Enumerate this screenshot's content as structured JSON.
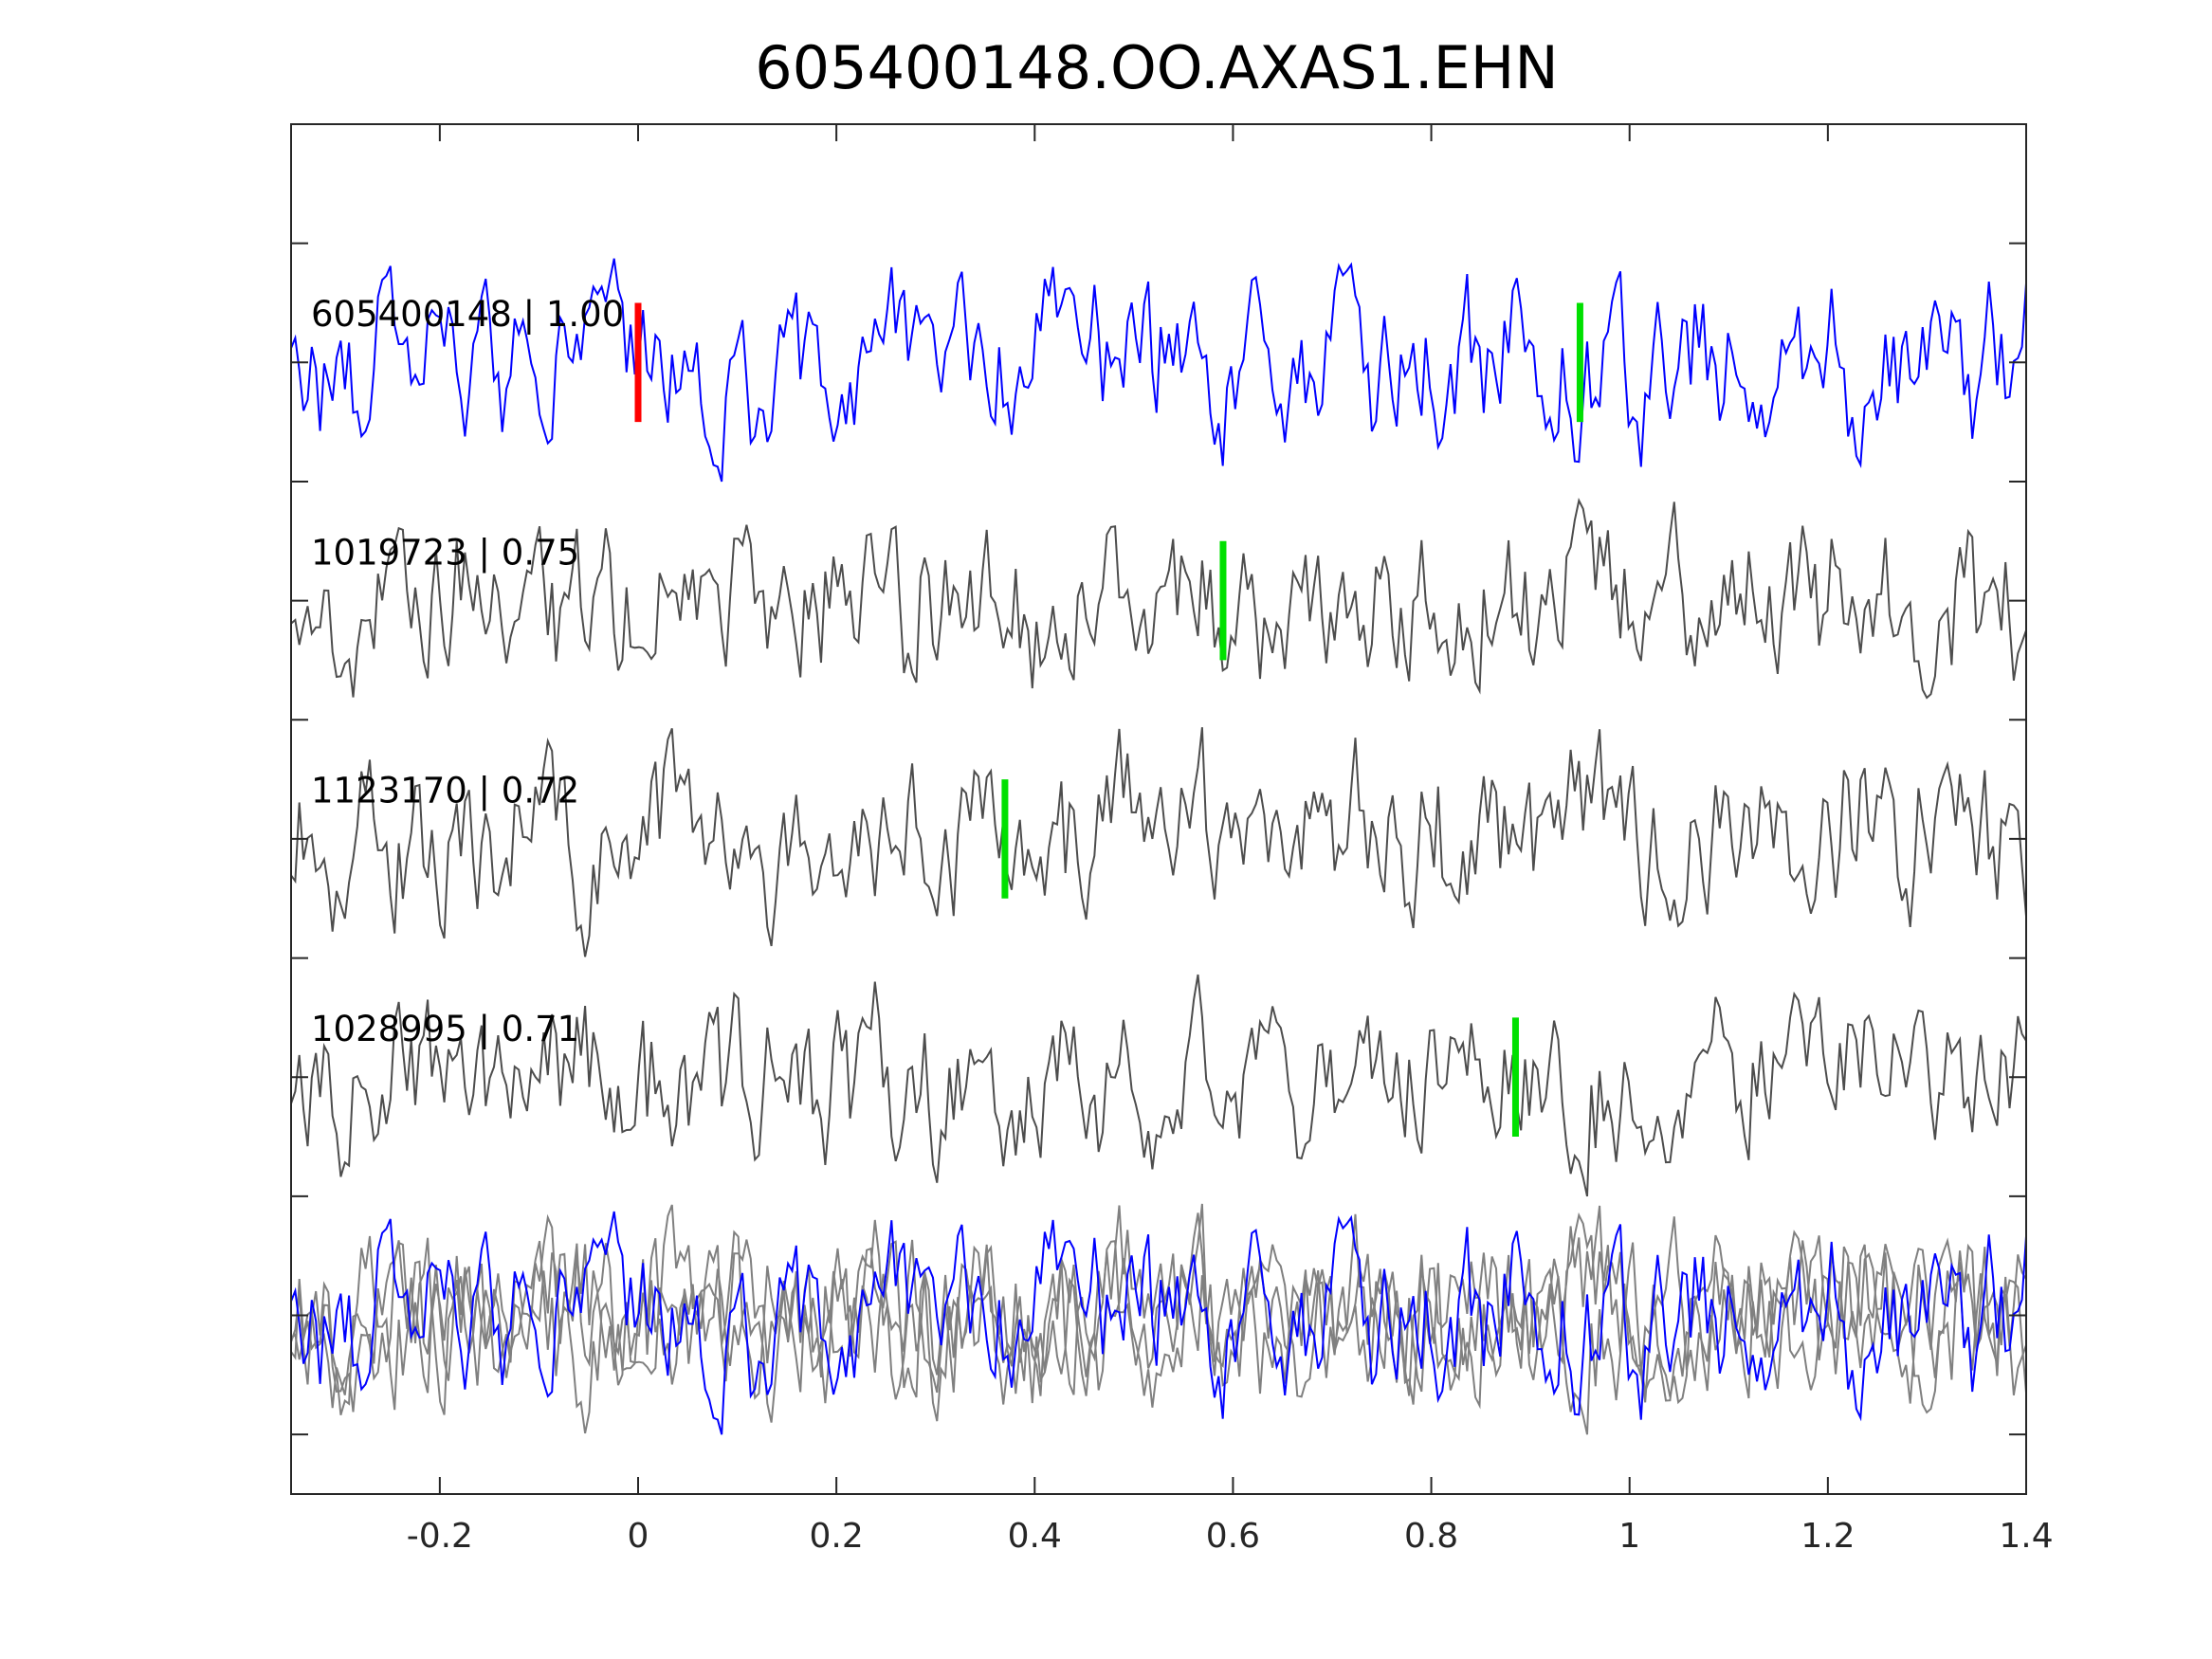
{
  "chart_data": {
    "type": "line",
    "title": "605400148.OO.AXAS1.EHN",
    "xlabel": "",
    "ylabel": "",
    "xlim": [
      -0.35,
      1.4
    ],
    "ylim": [
      -0.75,
      5.0
    ],
    "xticks": [
      "-0.2",
      "0",
      "0.2",
      "0.4",
      "0.6",
      "0.8",
      "1",
      "1.2",
      "1.4"
    ],
    "xtick_values": [
      -0.2,
      0,
      0.2,
      0.4,
      0.6,
      0.8,
      1,
      1.2,
      1.4
    ],
    "ytick_values": [
      -0.5,
      0,
      0.5,
      1,
      1.5,
      2,
      2.5,
      3,
      3.5,
      4,
      4.5
    ],
    "grid": false,
    "traces": [
      {
        "label": "605400148 | 1.00",
        "offset": 4,
        "color": "#0000ff",
        "seed": 11,
        "picks": [
          {
            "t": 0.0,
            "color": "#ff0000"
          },
          {
            "t": 0.95,
            "color": "#00e000"
          }
        ]
      },
      {
        "label": "1019723 | 0.75",
        "offset": 3,
        "color": "#4d4d4d",
        "seed": 23,
        "picks": [
          {
            "t": 0.59,
            "color": "#00e000"
          }
        ]
      },
      {
        "label": "1123170 | 0.72",
        "offset": 2,
        "color": "#4d4d4d",
        "seed": 37,
        "picks": [
          {
            "t": 0.37,
            "color": "#00e000"
          }
        ]
      },
      {
        "label": "1028995 | 0.71",
        "offset": 1,
        "color": "#4d4d4d",
        "seed": 53,
        "picks": [
          {
            "t": 0.885,
            "color": "#00e000"
          }
        ]
      }
    ],
    "stack": {
      "offset": 0,
      "overlay_color": "#808080"
    }
  }
}
